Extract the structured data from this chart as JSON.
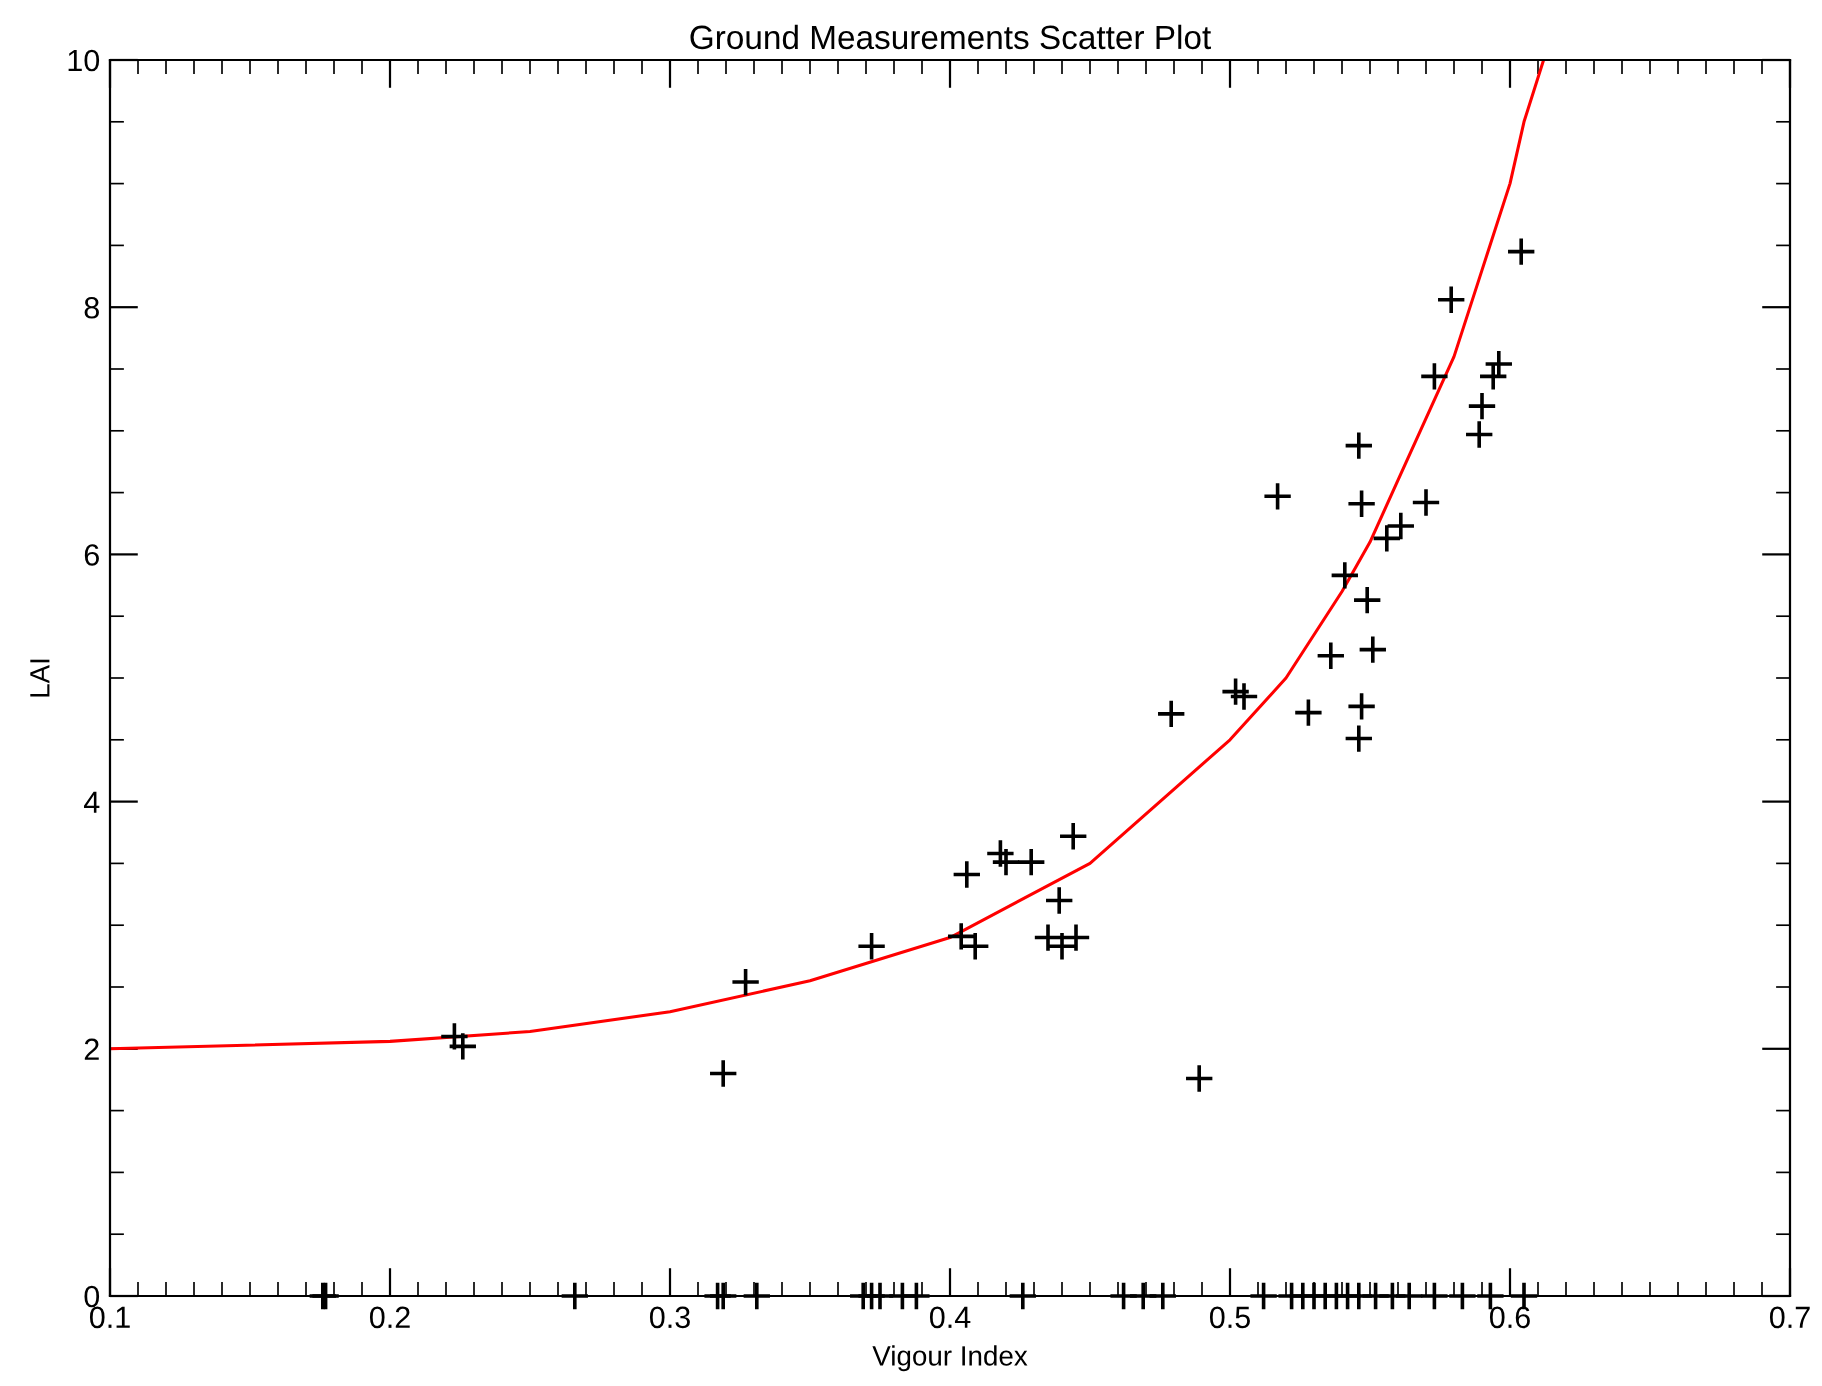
{
  "chart_data": {
    "type": "scatter",
    "title": "Ground Measurements Scatter Plot",
    "xlabel": "Vigour Index",
    "ylabel": "LAI",
    "marker": "cross",
    "grid": false,
    "legend": false,
    "xlim": [
      0.1,
      0.7
    ],
    "xticks": [
      0.1,
      0.2,
      0.3,
      0.4,
      0.5,
      0.6,
      0.7
    ],
    "ylim": [
      0,
      10
    ],
    "yticks": [
      0,
      2,
      4,
      6,
      8,
      10
    ],
    "series": [
      {
        "color": "#000000",
        "x": [
          0.223,
          0.226,
          0.319,
          0.327,
          0.372,
          0.404,
          0.406,
          0.409,
          0.418,
          0.42,
          0.429,
          0.435,
          0.439,
          0.44,
          0.444,
          0.445,
          0.479,
          0.489,
          0.502,
          0.505,
          0.528,
          0.536,
          0.541,
          0.546,
          0.547,
          0.546,
          0.547,
          0.549,
          0.551,
          0.517,
          0.556,
          0.561,
          0.57,
          0.573,
          0.579,
          0.589,
          0.59,
          0.594,
          0.596,
          0.604
        ],
        "values": [
          2.1,
          2.02,
          1.8,
          2.54,
          2.83,
          2.91,
          3.41,
          2.83,
          3.58,
          3.51,
          3.51,
          2.9,
          3.2,
          2.83,
          3.72,
          2.9,
          4.71,
          1.76,
          4.89,
          4.85,
          4.72,
          5.18,
          5.83,
          4.51,
          4.77,
          6.88,
          6.41,
          5.63,
          5.23,
          6.47,
          6.13,
          6.23,
          6.42,
          7.44,
          8.06,
          6.97,
          7.2,
          7.44,
          7.54,
          8.45
        ]
      },
      {
        "color": "#000000",
        "x": [
          0.176,
          0.177,
          0.266,
          0.317,
          0.319,
          0.331,
          0.369,
          0.372,
          0.375,
          0.383,
          0.388,
          0.426,
          0.462,
          0.469,
          0.476,
          0.512,
          0.522,
          0.526,
          0.53,
          0.534,
          0.538,
          0.542,
          0.546,
          0.552,
          0.558,
          0.564,
          0.573,
          0.583,
          0.593,
          0.605
        ],
        "values": [
          0,
          0,
          0,
          0,
          0,
          0,
          0,
          0,
          0,
          0,
          0,
          0,
          0,
          0,
          0,
          0,
          0,
          0,
          0,
          0,
          0,
          0,
          0,
          0,
          0,
          0,
          0,
          0,
          0,
          0
        ]
      },
      {
        "type": "line",
        "marker": "none",
        "color": "#ff0000",
        "x": [
          0.1,
          0.2,
          0.25,
          0.3,
          0.35,
          0.4,
          0.45,
          0.5,
          0.52,
          0.54,
          0.55,
          0.56,
          0.57,
          0.58,
          0.59,
          0.6,
          0.605,
          0.612
        ],
        "values": [
          2.0,
          2.06,
          2.14,
          2.3,
          2.55,
          2.9,
          3.5,
          4.5,
          5.0,
          5.7,
          6.1,
          6.6,
          7.1,
          7.6,
          8.3,
          9.0,
          9.5,
          10.0
        ]
      }
    ]
  }
}
